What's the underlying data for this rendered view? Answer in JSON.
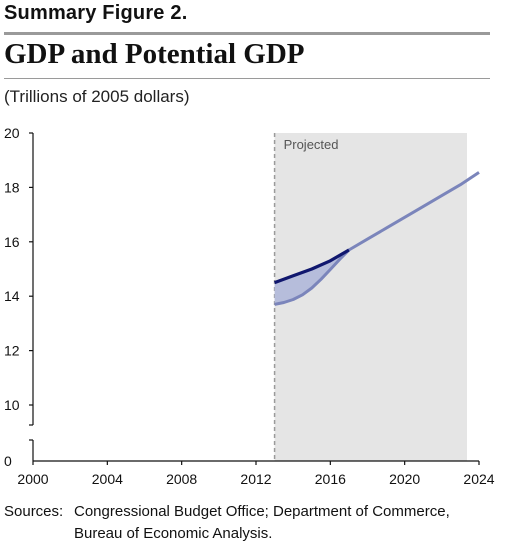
{
  "figure_label": "Summary Figure 2.",
  "title": "GDP and Potential GDP",
  "subtitle": "(Trillions of 2005 dollars)",
  "source": {
    "label": "Sources:",
    "line1": "Congressional Budget Office; Department of Commerce,",
    "line2": "Bureau of Economic Analysis."
  },
  "chart_data": {
    "type": "line",
    "title": "GDP and Potential GDP",
    "ylabel": "Trillions of 2005 dollars",
    "xlim": [
      2000,
      2024
    ],
    "ylim": [
      0,
      20
    ],
    "y_axis_break": [
      0,
      9
    ],
    "x_ticks": [
      "2000",
      "2004",
      "2008",
      "2012",
      "2016",
      "2020",
      "2024"
    ],
    "y_ticks": [
      "0",
      "10",
      "12",
      "14",
      "16",
      "18",
      "20"
    ],
    "projection_start": 2013,
    "projected_label": "Projected",
    "colors": {
      "potential": "#10176e",
      "gdp": "#7b85bb",
      "gap_fill": "#b6bddb",
      "projected_bg": "#e5e5e5"
    },
    "series": [
      {
        "key": "potential",
        "x": [
          2013,
          2014,
          2015,
          2016,
          2017,
          2018,
          2019,
          2020,
          2021,
          2022,
          2023,
          2024
        ],
        "values": [
          14.5,
          14.75,
          15.0,
          15.3,
          15.7,
          16.1,
          16.5,
          16.9,
          17.3,
          17.7,
          18.1,
          18.55
        ]
      },
      {
        "key": "gdp",
        "x": [
          2013,
          2013.5,
          2014,
          2014.5,
          2015,
          2015.5,
          2016,
          2016.5,
          2017,
          2018,
          2019,
          2020,
          2021,
          2022,
          2023,
          2024
        ],
        "values": [
          13.7,
          13.77,
          13.88,
          14.05,
          14.3,
          14.62,
          14.98,
          15.35,
          15.7,
          16.1,
          16.5,
          16.9,
          17.3,
          17.7,
          18.1,
          18.55
        ]
      }
    ]
  }
}
